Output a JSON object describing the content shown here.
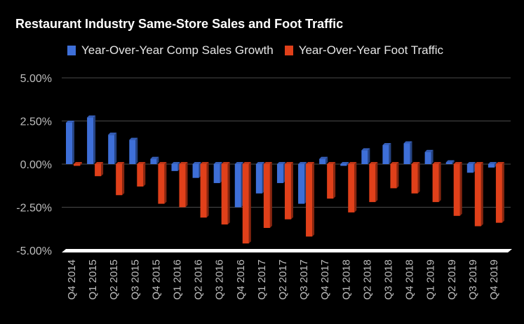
{
  "chart_data": {
    "type": "bar",
    "title": "Restaurant Industry Same-Store Sales and Foot Traffic",
    "categories": [
      "Q4 2014",
      "Q1 2015",
      "Q2 2015",
      "Q3 2015",
      "Q4 2015",
      "Q1 2016",
      "Q2 2016",
      "Q3 2016",
      "Q4 2016",
      "Q1 2017",
      "Q2 2017",
      "Q3 2017",
      "Q4 2017",
      "Q1 2018",
      "Q2 2018",
      "Q3 2018",
      "Q4 2018",
      "Q1 2019",
      "Q2 2019",
      "Q3 2019",
      "Q4 2019"
    ],
    "series": [
      {
        "name": "Year-Over-Year Comp Sales Growth",
        "color": "#3e6fd8",
        "values": [
          2.4,
          2.7,
          1.7,
          1.4,
          0.3,
          -0.4,
          -0.8,
          -1.1,
          -2.5,
          -1.7,
          -1.1,
          -2.3,
          0.3,
          -0.1,
          0.8,
          1.1,
          1.2,
          0.7,
          0.1,
          -0.5,
          -0.2
        ]
      },
      {
        "name": "Year-Over-Year Foot Traffic",
        "color": "#e0401a",
        "values": [
          -0.1,
          -0.7,
          -1.8,
          -1.3,
          -2.3,
          -2.5,
          -3.1,
          -3.5,
          -4.6,
          -3.7,
          -3.2,
          -4.2,
          -2.0,
          -2.8,
          -2.2,
          -1.4,
          -1.7,
          -2.2,
          -3.0,
          -3.6,
          -3.4
        ]
      }
    ],
    "y_ticks": [
      "5.00%",
      "2.50%",
      "0.00%",
      "-2.50%",
      "-5.00%"
    ],
    "y_tick_values": [
      5,
      2.5,
      0,
      -2.5,
      -5
    ],
    "ylim": [
      -5,
      5
    ],
    "grid": true,
    "legend_position": "top-left"
  }
}
